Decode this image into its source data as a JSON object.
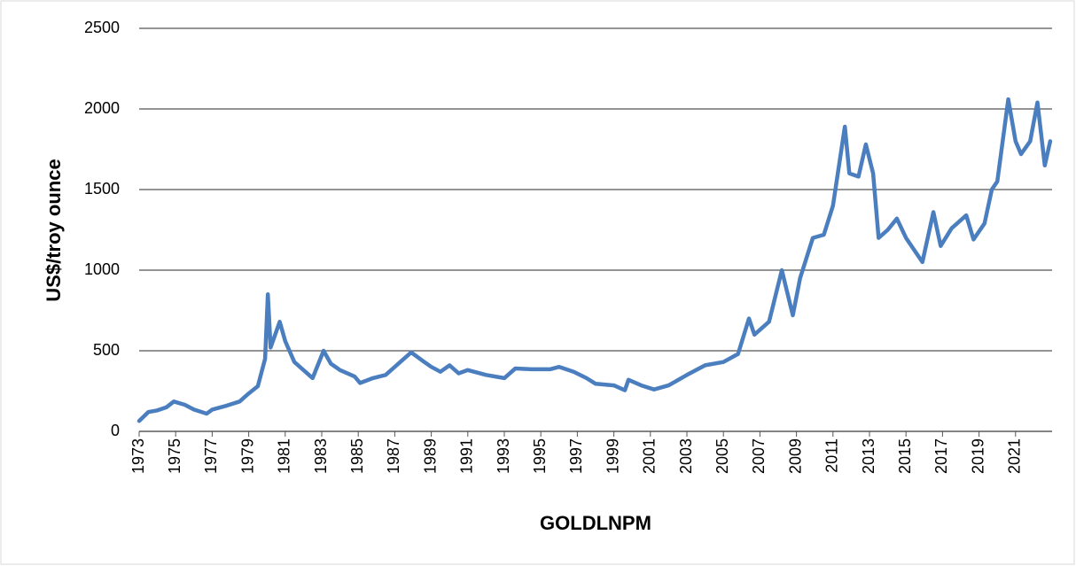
{
  "chart_data": {
    "type": "line",
    "y_label": "US$/troy ounce",
    "x_label": "GOLDLNPM",
    "color": "#4a7ebf",
    "grid": true,
    "xlim": [
      1973,
      2023
    ],
    "ylim": [
      0,
      2500
    ],
    "yticks": [
      0,
      500,
      1000,
      1500,
      2000,
      2500
    ],
    "xticks": [
      1973,
      1975,
      1977,
      1979,
      1981,
      1983,
      1985,
      1987,
      1989,
      1991,
      1993,
      1995,
      1997,
      1999,
      2001,
      2003,
      2005,
      2007,
      2009,
      2011,
      2013,
      2015,
      2017,
      2019,
      2021
    ],
    "x": [
      1973.0,
      1973.5,
      1974.0,
      1974.5,
      1974.9,
      1975.5,
      1976.0,
      1976.7,
      1977.0,
      1977.8,
      1978.5,
      1979.0,
      1979.5,
      1979.9,
      1980.05,
      1980.2,
      1980.7,
      1981.0,
      1981.5,
      1982.0,
      1982.5,
      1983.1,
      1983.5,
      1984.0,
      1984.8,
      1985.1,
      1985.8,
      1986.5,
      1987.0,
      1987.5,
      1987.9,
      1988.5,
      1989.0,
      1989.5,
      1990.0,
      1990.5,
      1991.0,
      1992.0,
      1993.0,
      1993.6,
      1994.5,
      1995.5,
      1996.0,
      1996.8,
      1997.5,
      1998.0,
      1999.0,
      1999.6,
      1999.8,
      2000.5,
      2001.2,
      2002.0,
      2003.0,
      2004.0,
      2005.0,
      2005.8,
      2006.4,
      2006.7,
      2007.5,
      2008.2,
      2008.8,
      2009.2,
      2009.9,
      2010.5,
      2011.0,
      2011.65,
      2011.9,
      2012.4,
      2012.8,
      2013.2,
      2013.5,
      2014.0,
      2014.5,
      2015.0,
      2015.9,
      2016.5,
      2016.9,
      2017.5,
      2018.3,
      2018.7,
      2019.3,
      2019.7,
      2020.0,
      2020.6,
      2021.0,
      2021.3,
      2021.8,
      2022.2,
      2022.6,
      2022.9
    ],
    "values": [
      65,
      120,
      130,
      150,
      185,
      165,
      135,
      110,
      135,
      160,
      185,
      235,
      280,
      450,
      850,
      520,
      680,
      560,
      430,
      380,
      330,
      500,
      420,
      380,
      340,
      300,
      330,
      350,
      400,
      450,
      490,
      440,
      400,
      370,
      410,
      360,
      380,
      350,
      330,
      390,
      385,
      385,
      400,
      370,
      330,
      295,
      285,
      255,
      320,
      285,
      260,
      285,
      350,
      410,
      430,
      480,
      700,
      600,
      680,
      1000,
      720,
      950,
      1200,
      1220,
      1400,
      1890,
      1600,
      1580,
      1780,
      1600,
      1200,
      1250,
      1320,
      1200,
      1050,
      1360,
      1150,
      1260,
      1340,
      1190,
      1290,
      1500,
      1550,
      2060,
      1800,
      1720,
      1800,
      2040,
      1650,
      1800
    ]
  }
}
